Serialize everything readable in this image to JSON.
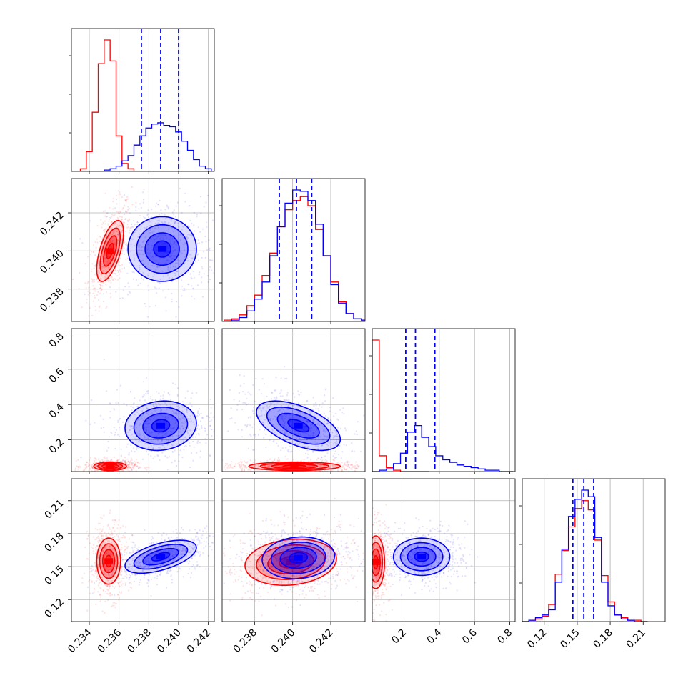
{
  "colors": {
    "red": "#ff0000",
    "blue": "#0000ff",
    "grid": "#b0b0b0",
    "axis": "#000000"
  },
  "chart_data": {
    "type": "corner",
    "grid": true,
    "series": [
      {
        "color": "red"
      },
      {
        "color": "blue",
        "quantile_lines": true
      }
    ],
    "params": [
      {
        "range": [
          0.2328,
          0.2424
        ],
        "ticks": [
          "0.234",
          "0.236",
          "0.238",
          "0.240",
          "0.242"
        ],
        "tick_values": [
          0.234,
          0.236,
          0.238,
          0.24,
          0.242
        ]
      },
      {
        "range": [
          0.2363,
          0.2438
        ],
        "ticks": [
          "0.238",
          "0.240",
          "0.242"
        ],
        "tick_values": [
          0.238,
          0.24,
          0.242
        ]
      },
      {
        "range": [
          0.02,
          0.83
        ],
        "ticks": [
          "0.2",
          "0.4",
          "0.6",
          "0.8"
        ],
        "tick_values": [
          0.2,
          0.4,
          0.6,
          0.8
        ]
      },
      {
        "range": [
          0.1,
          0.23
        ],
        "ticks": [
          "0.12",
          "0.15",
          "0.18",
          "0.21"
        ],
        "tick_values": [
          0.12,
          0.15,
          0.18,
          0.21
        ]
      }
    ],
    "histograms": [
      {
        "red": {
          "bins": [
            0.2334,
            0.2338,
            0.2342,
            0.2346,
            0.235,
            0.2354,
            0.2358,
            0.2362,
            0.2366,
            0.237
          ],
          "heights": [
            0.02,
            0.15,
            0.45,
            0.82,
            1.0,
            0.84,
            0.27,
            0.06,
            0.02,
            0.0
          ]
        },
        "blue": {
          "bins": [
            0.2346,
            0.235,
            0.2354,
            0.2358,
            0.2362,
            0.2366,
            0.237,
            0.2374,
            0.2378,
            0.2382,
            0.2386,
            0.239,
            0.2394,
            0.2398,
            0.2402,
            0.2406,
            0.241,
            0.2414,
            0.2418,
            0.2422
          ],
          "heights": [
            0.0,
            0.01,
            0.02,
            0.04,
            0.08,
            0.12,
            0.2,
            0.27,
            0.33,
            0.36,
            0.37,
            0.35,
            0.34,
            0.3,
            0.23,
            0.16,
            0.09,
            0.04,
            0.02,
            0.0
          ]
        },
        "quantiles": [
          0.2375,
          0.2388,
          0.24
        ]
      },
      {
        "red": {
          "bins": [
            0.2364,
            0.2368,
            0.2372,
            0.2376,
            0.238,
            0.2384,
            0.2388,
            0.2392,
            0.2396,
            0.24,
            0.2404,
            0.2408,
            0.2412,
            0.2416,
            0.242,
            0.2424,
            0.2428,
            0.2432,
            0.2436
          ],
          "heights": [
            0.01,
            0.02,
            0.05,
            0.12,
            0.2,
            0.35,
            0.52,
            0.72,
            0.85,
            0.92,
            0.95,
            0.88,
            0.7,
            0.5,
            0.3,
            0.15,
            0.06,
            0.02,
            0.01
          ]
        },
        "blue": {
          "bins": [
            0.2364,
            0.2368,
            0.2372,
            0.2376,
            0.238,
            0.2384,
            0.2388,
            0.2392,
            0.2396,
            0.24,
            0.2404,
            0.2408,
            0.2412,
            0.2416,
            0.242,
            0.2424,
            0.2428,
            0.2432,
            0.2436
          ],
          "heights": [
            0.0,
            0.01,
            0.03,
            0.08,
            0.17,
            0.3,
            0.5,
            0.72,
            0.9,
            1.0,
            0.99,
            0.92,
            0.74,
            0.5,
            0.28,
            0.14,
            0.06,
            0.02,
            0.01
          ]
        },
        "quantiles": [
          0.2393,
          0.2402,
          0.241
        ]
      },
      {
        "red": {
          "bins": [
            0.02,
            0.06,
            0.1,
            0.14,
            0.18,
            0.22,
            0.26,
            0.3
          ],
          "heights": [
            1.0,
            0.12,
            0.03,
            0.01,
            0.0,
            0.0,
            0.0,
            0.0
          ]
        },
        "blue": {
          "bins": [
            0.02,
            0.06,
            0.1,
            0.14,
            0.18,
            0.22,
            0.26,
            0.3,
            0.34,
            0.38,
            0.42,
            0.46,
            0.5,
            0.54,
            0.58,
            0.62,
            0.66,
            0.7,
            0.74,
            0.78
          ],
          "heights": [
            0.0,
            0.01,
            0.02,
            0.06,
            0.14,
            0.3,
            0.35,
            0.26,
            0.19,
            0.12,
            0.09,
            0.07,
            0.05,
            0.04,
            0.03,
            0.02,
            0.01,
            0.01,
            0.0,
            0.0
          ]
        },
        "quantiles": [
          0.21,
          0.265,
          0.375
        ]
      },
      {
        "red": {
          "bins": [
            0.1,
            0.106,
            0.112,
            0.118,
            0.124,
            0.13,
            0.136,
            0.142,
            0.148,
            0.154,
            0.16,
            0.166,
            0.172,
            0.178,
            0.184,
            0.19,
            0.196,
            0.202,
            0.208
          ],
          "heights": [
            0.0,
            0.01,
            0.02,
            0.04,
            0.13,
            0.36,
            0.54,
            0.72,
            0.86,
            0.92,
            0.85,
            0.62,
            0.35,
            0.15,
            0.05,
            0.03,
            0.01,
            0.01,
            0.0
          ]
        },
        "blue": {
          "bins": [
            0.1,
            0.106,
            0.112,
            0.118,
            0.124,
            0.13,
            0.136,
            0.142,
            0.148,
            0.154,
            0.16,
            0.166,
            0.172,
            0.178,
            0.184,
            0.19,
            0.196,
            0.202,
            0.208
          ],
          "heights": [
            0.0,
            0.01,
            0.03,
            0.05,
            0.09,
            0.3,
            0.55,
            0.8,
            0.93,
            1.0,
            0.95,
            0.64,
            0.3,
            0.12,
            0.05,
            0.02,
            0.01,
            0.0,
            0.0
          ]
        },
        "quantiles": [
          0.146,
          0.156,
          0.165
        ]
      }
    ],
    "contours": [
      {
        "row": 1,
        "col": 0,
        "red": {
          "center": [
            0.2354,
            0.24
          ],
          "sigma": [
            0.00045,
            0.0008
          ],
          "rho": 0.6
        },
        "blue": {
          "center": [
            0.2389,
            0.2401
          ],
          "sigma": [
            0.00115,
            0.00085
          ],
          "rho": 0.0
        }
      },
      {
        "row": 2,
        "col": 0,
        "red": {
          "center": [
            0.2354,
            0.05
          ],
          "sigma": [
            0.00055,
            0.012
          ],
          "rho": 0.0
        },
        "blue": {
          "center": [
            0.2388,
            0.28
          ],
          "sigma": [
            0.0012,
            0.07
          ],
          "rho": 0.1
        }
      },
      {
        "row": 2,
        "col": 1,
        "red": {
          "center": [
            0.2401,
            0.05
          ],
          "sigma": [
            0.0012,
            0.012
          ],
          "rho": 0.0
        },
        "blue": {
          "center": [
            0.2403,
            0.28
          ],
          "sigma": [
            0.0011,
            0.07
          ],
          "rho": -0.55
        }
      },
      {
        "row": 3,
        "col": 0,
        "red": {
          "center": [
            0.2353,
            0.155
          ],
          "sigma": [
            0.0004,
            0.0105
          ],
          "rho": 0.0
        },
        "blue": {
          "center": [
            0.2388,
            0.159
          ],
          "sigma": [
            0.0012,
            0.0075
          ],
          "rho": 0.55
        }
      },
      {
        "row": 3,
        "col": 1,
        "red": {
          "center": [
            0.2399,
            0.154
          ],
          "sigma": [
            0.0012,
            0.0105
          ],
          "rho": 0.15
        },
        "blue": {
          "center": [
            0.2403,
            0.158
          ],
          "sigma": [
            0.00095,
            0.0095
          ],
          "rho": 0.1
        }
      },
      {
        "row": 3,
        "col": 2,
        "red": {
          "center": [
            0.04,
            0.154
          ],
          "sigma": [
            0.025,
            0.012
          ],
          "rho": 0.0
        },
        "blue": {
          "center": [
            0.3,
            0.159
          ],
          "sigma": [
            0.08,
            0.0085
          ],
          "rho": 0.0
        }
      }
    ],
    "contour_levels": [
      0.5,
      1.0,
      1.5,
      2.0
    ]
  }
}
